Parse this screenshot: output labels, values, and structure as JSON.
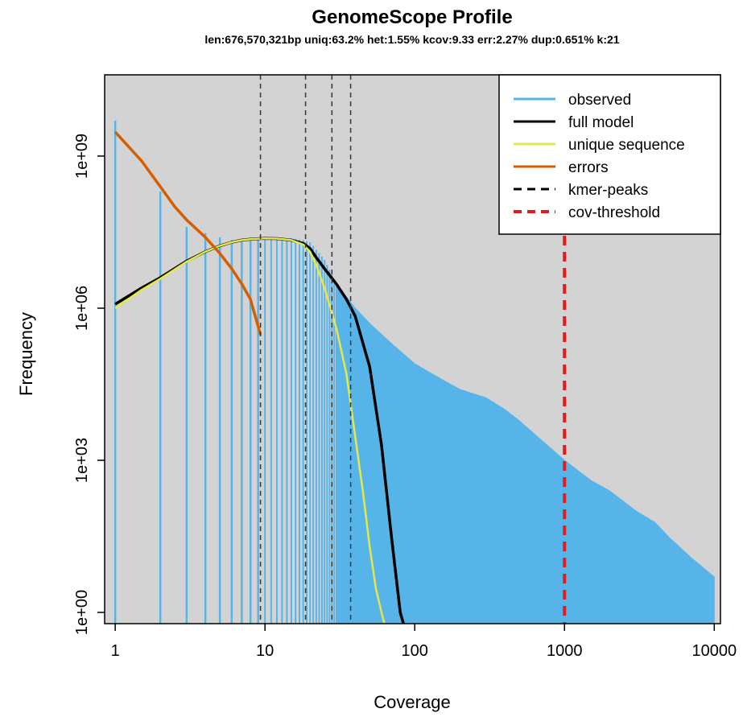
{
  "chart_data": {
    "type": "line",
    "title": "GenomeScope Profile",
    "subtitle": "len:676,570,321bp uniq:63.2%  het:1.55% kcov:9.33 err:2.27%  dup:0.651%  k:21",
    "xlabel": "Coverage",
    "ylabel": "Frequency",
    "x_scale": "log10",
    "y_scale": "log10",
    "xlim": [
      0.85,
      11000
    ],
    "ylim": [
      0.6,
      40000000000
    ],
    "x_ticks": [
      1,
      10,
      100,
      1000,
      10000
    ],
    "x_tick_labels": [
      "1",
      "10",
      "100",
      "1000",
      "10000"
    ],
    "y_ticks": [
      1,
      1000,
      1000000,
      1000000000
    ],
    "y_tick_labels": [
      "1e+00",
      "1e+03",
      "1e+06",
      "1e+09"
    ],
    "grid": false,
    "background": "#d3d3d3",
    "legend_position": "top-right",
    "legend": [
      {
        "label": "observed",
        "color": "#56b4e9",
        "style": "solid"
      },
      {
        "label": "full model",
        "color": "#000000",
        "style": "solid"
      },
      {
        "label": "unique sequence",
        "color": "#e6e84a",
        "style": "solid"
      },
      {
        "label": "errors",
        "color": "#d55e00",
        "style": "solid"
      },
      {
        "label": "kmer-peaks",
        "color": "#000000",
        "style": "dashed"
      },
      {
        "label": "cov-threshold",
        "color": "#e41a1c",
        "style": "dashed"
      }
    ],
    "observed_envelope": {
      "x": [
        1,
        2,
        3,
        4,
        5,
        6,
        7,
        8,
        9,
        10,
        12,
        15,
        18,
        20,
        25,
        30,
        40,
        50,
        70,
        100,
        150,
        200,
        300,
        400,
        500,
        700,
        1000,
        1500,
        2000,
        3000,
        4000,
        5000,
        7000,
        10000
      ],
      "y": [
        5000000000,
        200000000,
        40000000,
        30000000,
        25000000,
        22000000,
        22000000,
        23000000,
        24000000,
        25000000,
        24000000,
        24000000,
        22000000,
        20000000,
        9000000,
        3000000,
        1000000,
        500000,
        200000,
        80000,
        40000,
        25000,
        17000,
        10000,
        6000,
        2500,
        1000,
        400,
        250,
        100,
        60,
        30,
        12,
        5
      ]
    },
    "series": [
      {
        "name": "full model",
        "x": [
          1,
          1.5,
          2,
          3,
          4,
          5,
          6,
          7,
          8,
          9,
          10,
          12,
          15,
          18,
          20,
          22,
          25,
          30,
          35,
          40,
          50,
          60,
          70,
          80,
          90
        ],
        "y": [
          1200000,
          2500000,
          4000000,
          8500000,
          13000000,
          17000000,
          20000000,
          22000000,
          23000000,
          23500000,
          23700000,
          23600000,
          22000000,
          19000000,
          15000000,
          10000000,
          6000000,
          3000000,
          1500000,
          700000,
          70000,
          2000,
          30,
          1,
          0.3
        ]
      },
      {
        "name": "unique sequence",
        "x": [
          1,
          1.5,
          2,
          3,
          4,
          5,
          6,
          7,
          8,
          9,
          10,
          12,
          15,
          18,
          20,
          22,
          25,
          30,
          35,
          40,
          45,
          50,
          55,
          60,
          65
        ],
        "y": [
          1000000,
          2300000,
          3800000,
          8300000,
          13000000,
          17000000,
          20000000,
          22000000,
          23000000,
          23500000,
          23700000,
          23600000,
          22000000,
          18000000,
          13000000,
          7000000,
          2500000,
          400000,
          50000,
          3000,
          250,
          20,
          3,
          1,
          0.4
        ]
      },
      {
        "name": "errors",
        "x": [
          1,
          1.5,
          2,
          2.5,
          3,
          4,
          5,
          6,
          7,
          8,
          9.33
        ],
        "y": [
          3000000000,
          800000000,
          250000000,
          100000000,
          55000000,
          25000000,
          12000000,
          6000000,
          3000000,
          1500000,
          300000
        ]
      }
    ],
    "kmer_peaks": [
      9.33,
      18.66,
      27.99,
      37.32
    ],
    "cov_threshold": 1000
  }
}
